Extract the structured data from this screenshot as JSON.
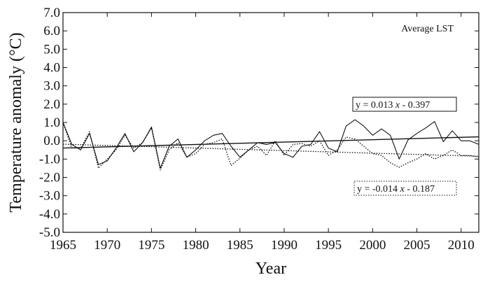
{
  "chart_data": {
    "type": "line",
    "panel_label": "Average LST",
    "xlabel": "Year",
    "ylabel": "Temperature anomaly (°C)",
    "xlim": [
      1965,
      2012
    ],
    "ylim": [
      -5.0,
      7.0
    ],
    "x_ticks": [
      1965,
      1970,
      1975,
      1980,
      1985,
      1990,
      1995,
      2000,
      2005,
      2010
    ],
    "x_tick_labels": [
      "1965",
      "1970",
      "1975",
      "1980",
      "1985",
      "1990",
      "1995",
      "2000",
      "2005",
      "2010"
    ],
    "y_ticks": [
      -5,
      -4,
      -3,
      -2,
      -1,
      0,
      1,
      2,
      3,
      4,
      5,
      6,
      7
    ],
    "y_tick_labels": [
      "-5.0",
      "-4.0",
      "-3.0",
      "-2.0",
      "-1.0",
      "0.0",
      "1.0",
      "2.0",
      "3.0",
      "4.0",
      "5.0",
      "6.0",
      "7.0"
    ],
    "grid": false,
    "x": [
      1965,
      1966,
      1967,
      1968,
      1969,
      1970,
      1971,
      1972,
      1973,
      1974,
      1975,
      1976,
      1977,
      1978,
      1979,
      1980,
      1981,
      1982,
      1983,
      1984,
      1985,
      1986,
      1987,
      1988,
      1989,
      1990,
      1991,
      1992,
      1993,
      1994,
      1995,
      1996,
      1997,
      1998,
      1999,
      2000,
      2001,
      2002,
      2003,
      2004,
      2005,
      2006,
      2007,
      2008,
      2009,
      2010,
      2011,
      2012
    ],
    "series": [
      {
        "style": "solid",
        "values": [
          1.0,
          -0.2,
          -0.5,
          0.4,
          -1.3,
          -1.1,
          -0.4,
          0.4,
          -0.6,
          -0.1,
          0.75,
          -1.5,
          -0.3,
          0.1,
          -0.9,
          -0.5,
          0.0,
          0.3,
          0.4,
          -0.3,
          -0.9,
          -0.5,
          -0.1,
          -0.2,
          -0.1,
          -0.7,
          -0.9,
          -0.3,
          -0.2,
          0.5,
          -0.4,
          -0.6,
          0.8,
          1.15,
          0.8,
          0.3,
          0.65,
          0.3,
          -1.0,
          0.05,
          0.4,
          0.7,
          1.05,
          -0.05,
          0.55,
          0.0,
          0.0,
          -0.2
        ]
      },
      {
        "style": "dotted",
        "values": [
          1.0,
          -0.4,
          -0.4,
          0.5,
          -1.5,
          -1.0,
          -0.5,
          0.3,
          -0.4,
          -0.1,
          0.7,
          -1.6,
          -0.5,
          -0.1,
          -0.9,
          -0.7,
          -0.2,
          -0.1,
          0.1,
          -1.35,
          -0.95,
          -0.5,
          -0.3,
          -0.8,
          0.0,
          -0.8,
          -0.2,
          -0.15,
          -0.3,
          0.0,
          -0.8,
          -0.5,
          0.2,
          0.1,
          -0.3,
          -0.7,
          -0.8,
          -1.2,
          -1.45,
          -1.2,
          -1.0,
          -0.7,
          -1.0,
          -0.8,
          -0.5,
          -0.8,
          -0.8,
          -0.9
        ]
      }
    ],
    "trend_lines": [
      {
        "style": "solid",
        "equation": "y = 0.013 x - 0.397",
        "eq_prefix": "y = 0.013 ",
        "eq_var": "x",
        "eq_suffix": " - 0.397",
        "slope": 0.013,
        "intercept": -0.397
      },
      {
        "style": "dotted",
        "equation": "y = -0.014 x - 0.187",
        "eq_prefix": "y = -0.014 ",
        "eq_var": "x",
        "eq_suffix": " - 0.187",
        "slope": -0.014,
        "intercept": -0.187
      }
    ]
  }
}
